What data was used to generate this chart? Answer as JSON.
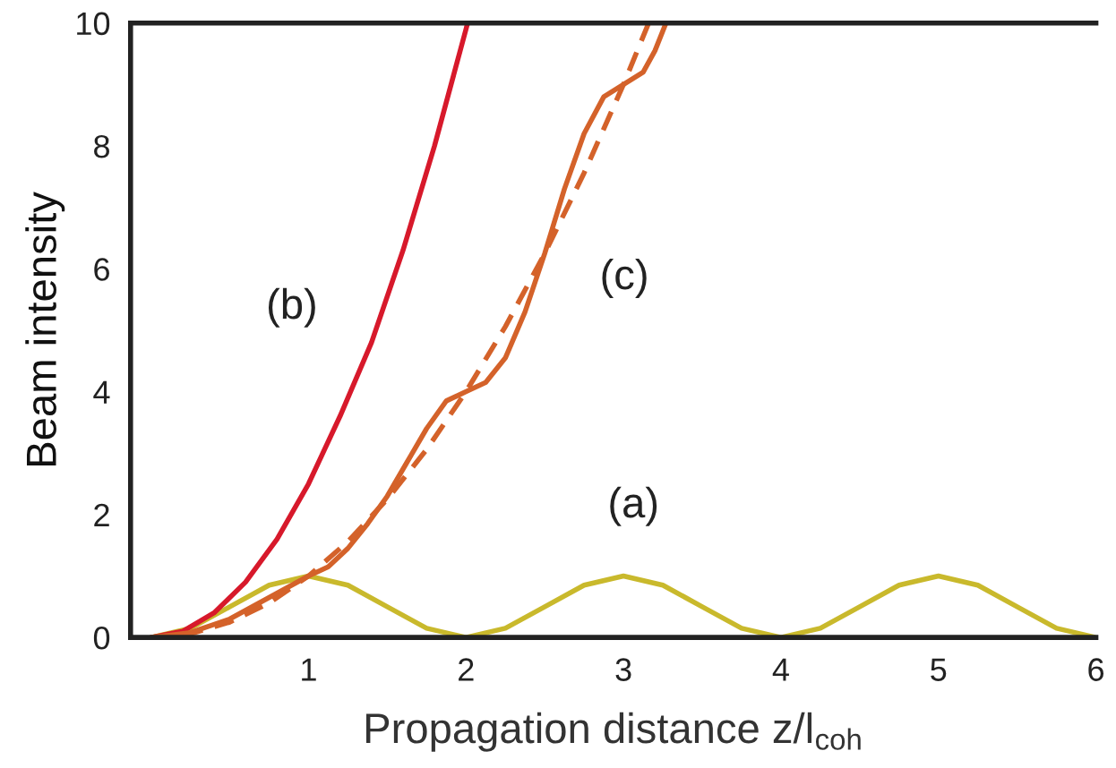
{
  "chart_data": {
    "type": "line",
    "xlabel": "Propagation distance z/l$_{coh}$",
    "ylabel": "Beam intensity",
    "xlim": [
      -0.13,
      6
    ],
    "ylim": [
      0,
      10
    ],
    "xticks": [
      1,
      2,
      3,
      4,
      5,
      6
    ],
    "yticks": [
      0,
      2,
      4,
      6,
      8,
      10
    ],
    "grid": false,
    "legend": false,
    "marker": "none",
    "series": [
      {
        "name": "(a)",
        "color": "#c9b92c",
        "line_style": "solid",
        "x": [
          0,
          0.25,
          0.5,
          0.75,
          1,
          1.25,
          1.5,
          1.75,
          2,
          2.25,
          2.5,
          2.75,
          3,
          3.25,
          3.5,
          3.75,
          4,
          4.25,
          4.5,
          4.75,
          5,
          5.25,
          5.5,
          5.75,
          6
        ],
        "values": [
          0,
          0.15,
          0.5,
          0.85,
          1,
          0.85,
          0.5,
          0.15,
          0,
          0.15,
          0.5,
          0.85,
          1,
          0.85,
          0.5,
          0.15,
          0,
          0.15,
          0.5,
          0.85,
          1,
          0.85,
          0.5,
          0.15,
          0
        ]
      },
      {
        "name": "(b)",
        "color": "#d7192b",
        "line_style": "solid",
        "x": [
          0,
          0.2,
          0.4,
          0.6,
          0.8,
          1,
          1.2,
          1.4,
          1.6,
          1.8,
          2,
          2.01
        ],
        "values": [
          0,
          0.1,
          0.4,
          0.9,
          1.6,
          2.5,
          3.6,
          4.8,
          6.3,
          8,
          9.9,
          10
        ]
      },
      {
        "name": "(c)",
        "color": "#d4622a",
        "line_style": "solid",
        "x": [
          0,
          0.25,
          0.5,
          0.75,
          1,
          1.125,
          1.25,
          1.375,
          1.5,
          1.625,
          1.75,
          1.875,
          2,
          2.125,
          2.25,
          2.375,
          2.5,
          2.625,
          2.75,
          2.875,
          3,
          3.125,
          3.2,
          3.27
        ],
        "values": [
          0,
          0.08,
          0.3,
          0.65,
          1,
          1.15,
          1.45,
          1.85,
          2.3,
          2.85,
          3.4,
          3.85,
          4,
          4.15,
          4.55,
          5.3,
          6.25,
          7.3,
          8.2,
          8.8,
          9,
          9.2,
          9.55,
          10
        ]
      },
      {
        "color": "#d4622a",
        "line_style": "dashed",
        "x": [
          0,
          0.25,
          0.5,
          0.75,
          1,
          1.25,
          1.5,
          1.75,
          2,
          2.25,
          2.5,
          2.75,
          3,
          3.16
        ],
        "values": [
          0,
          0.06,
          0.25,
          0.56,
          1,
          1.56,
          2.25,
          3.06,
          4,
          5.06,
          6.25,
          7.56,
          9,
          10
        ]
      }
    ]
  }
}
